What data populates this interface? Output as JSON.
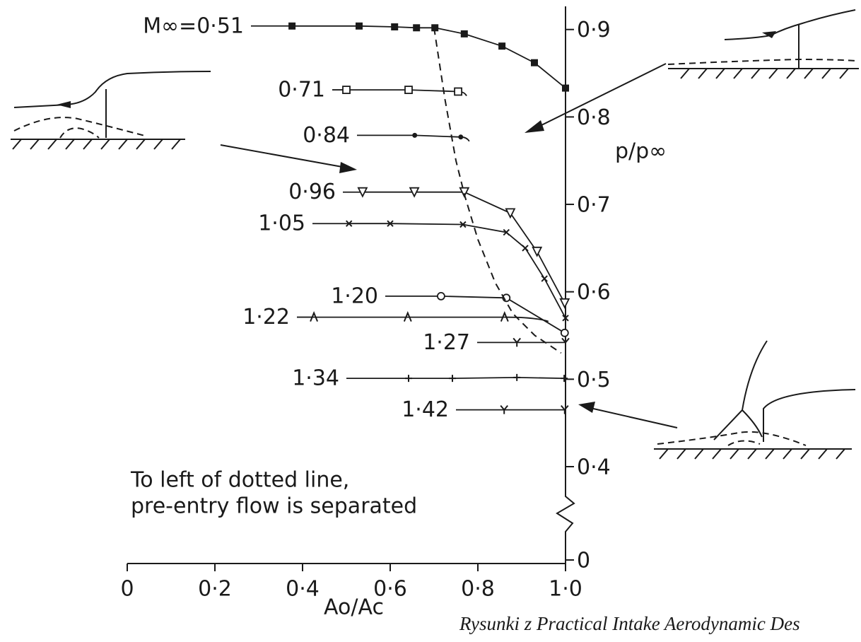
{
  "chart_data": {
    "type": "line",
    "y_label": "p/p∞",
    "x_label": "Ao/Ac",
    "annotation": [
      "To left of dotted line,",
      "pre-entry flow is separated"
    ],
    "credit": "Rysunki z Practical Intake Aerodynamic Des",
    "xlim": [
      0,
      1.0
    ],
    "ylim": [
      0,
      0.92
    ],
    "y_break": [
      0,
      0.4
    ],
    "xticks": [
      0,
      {
        "value": 0.2,
        "label": "0·2"
      },
      {
        "value": 0.4,
        "label": "0·4"
      },
      {
        "value": 0.6,
        "label": "0·6"
      },
      {
        "value": 0.8,
        "label": "0·8"
      },
      {
        "value": 1.0,
        "label": "1·0"
      }
    ],
    "yticks": [
      0,
      {
        "value": 0.4,
        "label": "0·4"
      },
      {
        "value": 0.5,
        "label": "0·5"
      },
      {
        "value": 0.6,
        "label": "0·6"
      },
      {
        "value": 0.7,
        "label": "0·7"
      },
      {
        "value": 0.8,
        "label": "0·8"
      },
      {
        "value": 0.9,
        "label": "0·9"
      }
    ],
    "color": "#1a1a1a",
    "series": [
      {
        "name": "M∞=0·51",
        "marker": "filled-square",
        "x": [
          0.376,
          0.529,
          0.61,
          0.66,
          0.702,
          0.769,
          0.855,
          0.929,
          1.0
        ],
        "values": [
          0.904,
          0.904,
          0.903,
          0.902,
          0.902,
          0.895,
          0.881,
          0.862,
          0.833
        ]
      },
      {
        "name": "0·71",
        "marker": "open-square",
        "x": [
          0.5,
          0.642,
          0.755
        ],
        "values": [
          0.831,
          0.831,
          0.829
        ]
      },
      {
        "name": "0·84",
        "marker": "dot",
        "x": [
          0.656,
          0.761
        ],
        "values": [
          0.779,
          0.777
        ]
      },
      {
        "name": "0·96",
        "marker": "open-triangle",
        "x": [
          0.537,
          0.655,
          0.769,
          0.874,
          0.935,
          0.998
        ],
        "values": [
          0.714,
          0.714,
          0.714,
          0.69,
          0.646,
          0.587
        ]
      },
      {
        "name": "1·05",
        "marker": "cross",
        "x": [
          0.506,
          0.6,
          0.766,
          0.865,
          0.908,
          0.952,
          1.0
        ],
        "values": [
          0.678,
          0.678,
          0.677,
          0.668,
          0.65,
          0.615,
          0.57
        ]
      },
      {
        "name": "1·20",
        "marker": "open-circle",
        "x": [
          0.716,
          0.865,
          0.998
        ],
        "values": [
          0.595,
          0.593,
          0.553
        ]
      },
      {
        "name": "1·22",
        "marker": "lambda",
        "x": [
          0.426,
          0.64,
          0.861
        ],
        "values": [
          0.571,
          0.571,
          0.571
        ]
      },
      {
        "name": "1·27",
        "marker": "Y",
        "x": [
          0.889,
          1.0
        ],
        "values": [
          0.542,
          0.542
        ]
      },
      {
        "name": "1·34",
        "marker": "plus",
        "x": [
          0.642,
          0.742,
          0.889,
          0.997
        ],
        "values": [
          0.501,
          0.501,
          0.502,
          0.501
        ]
      },
      {
        "name": "1·42",
        "marker": "Y",
        "x": [
          0.86,
          0.998
        ],
        "values": [
          0.465,
          0.465
        ]
      }
    ],
    "separation_line": {
      "x": [
        0.7,
        0.725,
        0.75,
        0.77,
        0.8,
        0.84,
        0.88,
        0.93,
        0.99
      ],
      "values": [
        0.902,
        0.82,
        0.75,
        0.71,
        0.66,
        0.61,
        0.575,
        0.55,
        0.53
      ]
    }
  }
}
